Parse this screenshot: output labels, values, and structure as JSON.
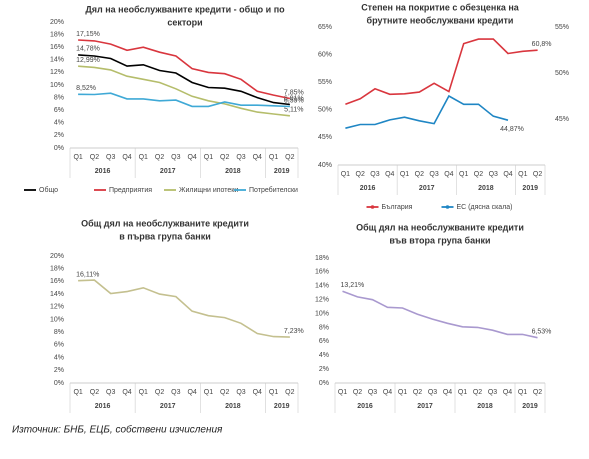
{
  "source": "Източник: БНБ, ЕЦБ, собствени изчисления",
  "chart_data": [
    {
      "type": "line",
      "title": [
        "Дял на необслужваните кредити - общо и по",
        "сектори"
      ],
      "categories": [
        "Q1",
        "Q2",
        "Q3",
        "Q4",
        "Q1",
        "Q2",
        "Q3",
        "Q4",
        "Q1",
        "Q2",
        "Q3",
        "Q4",
        "Q1",
        "Q2"
      ],
      "years": [
        "2016",
        "2016",
        "2016",
        "2016",
        "2017",
        "2017",
        "2017",
        "2017",
        "2018",
        "2018",
        "2018",
        "2018",
        "2019",
        "2019"
      ],
      "ylim": [
        0,
        20
      ],
      "yticks": [
        {
          "value": 0,
          "label": "0%"
        },
        {
          "value": 2,
          "label": "2%"
        },
        {
          "value": 4,
          "label": "4%"
        },
        {
          "value": 6,
          "label": "6%"
        },
        {
          "value": 8,
          "label": "8%"
        },
        {
          "value": 10,
          "label": "10%"
        },
        {
          "value": 12,
          "label": "12%"
        },
        {
          "value": 14,
          "label": "14%"
        },
        {
          "value": 16,
          "label": "16%"
        },
        {
          "value": 18,
          "label": "18%"
        },
        {
          "value": 20,
          "label": "20%"
        }
      ],
      "legend": "bottom",
      "series": [
        {
          "name": "Общо",
          "color": "#000000",
          "values": [
            14.78,
            14.6,
            14.2,
            13.0,
            13.2,
            12.3,
            11.9,
            10.4,
            9.6,
            9.5,
            9.0,
            8.0,
            7.2,
            6.91
          ],
          "value_labels": [
            "14,78%",
            null,
            null,
            null,
            null,
            null,
            null,
            null,
            null,
            null,
            null,
            null,
            null,
            "6,91%"
          ]
        },
        {
          "name": "Предприятия",
          "color": "#d9363e",
          "values": [
            17.15,
            17.0,
            16.5,
            15.5,
            16.0,
            15.2,
            14.6,
            12.6,
            12.0,
            11.8,
            10.9,
            9.0,
            8.4,
            7.85
          ],
          "value_labels": [
            "17,15%",
            null,
            null,
            null,
            null,
            null,
            null,
            null,
            null,
            null,
            null,
            null,
            null,
            "7,85%"
          ]
        },
        {
          "name": "Жилищни ипотеки",
          "color": "#b5bd6b",
          "values": [
            12.99,
            12.8,
            12.4,
            11.4,
            10.9,
            10.4,
            9.4,
            8.2,
            7.5,
            7.0,
            6.3,
            5.7,
            5.4,
            5.11
          ],
          "value_labels": [
            "12,99%",
            null,
            null,
            null,
            null,
            null,
            null,
            null,
            null,
            null,
            null,
            null,
            null,
            "5,11%"
          ]
        },
        {
          "name": "Потребителски",
          "color": "#3fa9d6",
          "values": [
            8.52,
            8.5,
            8.7,
            7.8,
            7.8,
            7.5,
            7.6,
            6.6,
            6.6,
            7.3,
            6.8,
            6.8,
            6.7,
            6.59
          ],
          "value_labels": [
            "8,52%",
            null,
            null,
            null,
            null,
            null,
            null,
            null,
            null,
            null,
            null,
            null,
            null,
            "6,59%"
          ]
        }
      ]
    },
    {
      "type": "line",
      "title": [
        "Степен на покритие с обезценка на",
        "брутните необслужвани кредити"
      ],
      "categories": [
        "Q1",
        "Q2",
        "Q3",
        "Q4",
        "Q1",
        "Q2",
        "Q3",
        "Q4",
        "Q1",
        "Q2",
        "Q3",
        "Q4",
        "Q1",
        "Q2"
      ],
      "years": [
        "2016",
        "2016",
        "2016",
        "2016",
        "2017",
        "2017",
        "2017",
        "2017",
        "2018",
        "2018",
        "2018",
        "2018",
        "2019",
        "2019"
      ],
      "ylim": [
        40,
        65
      ],
      "yticks": [
        {
          "value": 40,
          "label": "40%"
        },
        {
          "value": 45,
          "label": "45%"
        },
        {
          "value": 50,
          "label": "50%"
        },
        {
          "value": 55,
          "label": "55%"
        },
        {
          "value": 60,
          "label": "60%"
        },
        {
          "value": 65,
          "label": "65%"
        }
      ],
      "y2lim": [
        40,
        55
      ],
      "y2ticks": [
        {
          "value": 45,
          "label": "45%"
        },
        {
          "value": 50,
          "label": "50%"
        },
        {
          "value": 55,
          "label": "55%"
        }
      ],
      "legend": "bottom",
      "series": [
        {
          "name": "България",
          "color": "#d9363e",
          "values": [
            51.0,
            52.0,
            53.8,
            52.8,
            52.9,
            53.2,
            54.8,
            53.3,
            62.0,
            62.8,
            62.8,
            60.2,
            60.6,
            60.8
          ],
          "value_labels": [
            null,
            null,
            null,
            null,
            null,
            null,
            null,
            null,
            null,
            null,
            null,
            null,
            null,
            "60,8%"
          ]
        },
        {
          "name": "ЕС (дясна скала)",
          "color": "#1f86c4",
          "axis": "y2",
          "values": [
            44.0,
            44.4,
            44.4,
            44.9,
            45.2,
            44.8,
            44.5,
            47.5,
            46.6,
            46.6,
            45.3,
            44.87,
            null,
            null
          ],
          "value_labels": [
            null,
            null,
            null,
            null,
            null,
            null,
            null,
            null,
            null,
            null,
            null,
            "44,87%",
            null,
            null
          ]
        }
      ]
    },
    {
      "type": "line",
      "title": [
        "Общ дял на необслужваните кредити",
        "в първа група банки"
      ],
      "categories": [
        "Q1",
        "Q2",
        "Q3",
        "Q4",
        "Q1",
        "Q2",
        "Q3",
        "Q4",
        "Q1",
        "Q2",
        "Q3",
        "Q4",
        "Q1",
        "Q2"
      ],
      "years": [
        "2016",
        "2016",
        "2016",
        "2016",
        "2017",
        "2017",
        "2017",
        "2017",
        "2018",
        "2018",
        "2018",
        "2018",
        "2019",
        "2019"
      ],
      "ylim": [
        0,
        20
      ],
      "yticks": [
        {
          "value": 0,
          "label": "0%"
        },
        {
          "value": 2,
          "label": "2%"
        },
        {
          "value": 4,
          "label": "4%"
        },
        {
          "value": 6,
          "label": "6%"
        },
        {
          "value": 8,
          "label": "8%"
        },
        {
          "value": 10,
          "label": "10%"
        },
        {
          "value": 12,
          "label": "12%"
        },
        {
          "value": 14,
          "label": "14%"
        },
        {
          "value": 16,
          "label": "16%"
        },
        {
          "value": 18,
          "label": "18%"
        },
        {
          "value": 20,
          "label": "20%"
        }
      ],
      "series": [
        {
          "color": "#c4c08f",
          "values": [
            16.11,
            16.2,
            14.1,
            14.4,
            15.0,
            14.0,
            13.6,
            11.3,
            10.6,
            10.3,
            9.4,
            7.8,
            7.3,
            7.23
          ],
          "value_labels": [
            "16,11%",
            null,
            null,
            null,
            null,
            null,
            null,
            null,
            null,
            null,
            null,
            null,
            null,
            "7,23%"
          ]
        }
      ]
    },
    {
      "type": "line",
      "title": [
        "Общ дял на необслужваните кредити",
        "във втора група банки"
      ],
      "categories": [
        "Q1",
        "Q2",
        "Q3",
        "Q4",
        "Q1",
        "Q2",
        "Q3",
        "Q4",
        "Q1",
        "Q2",
        "Q3",
        "Q4",
        "Q1",
        "Q2"
      ],
      "years": [
        "2016",
        "2016",
        "2016",
        "2016",
        "2017",
        "2017",
        "2017",
        "2017",
        "2018",
        "2018",
        "2018",
        "2018",
        "2019",
        "2019"
      ],
      "ylim": [
        0,
        18
      ],
      "yticks": [
        {
          "value": 0,
          "label": "0%"
        },
        {
          "value": 2,
          "label": "2%"
        },
        {
          "value": 4,
          "label": "4%"
        },
        {
          "value": 6,
          "label": "6%"
        },
        {
          "value": 8,
          "label": "8%"
        },
        {
          "value": 10,
          "label": "10%"
        },
        {
          "value": 12,
          "label": "12%"
        },
        {
          "value": 14,
          "label": "14%"
        },
        {
          "value": 16,
          "label": "16%"
        },
        {
          "value": 18,
          "label": "18%"
        }
      ],
      "series": [
        {
          "color": "#a999cf",
          "values": [
            13.21,
            12.4,
            12.0,
            10.9,
            10.8,
            9.9,
            9.2,
            8.6,
            8.1,
            8.0,
            7.6,
            7.0,
            7.0,
            6.53
          ],
          "value_labels": [
            "13,21%",
            null,
            null,
            null,
            null,
            null,
            null,
            null,
            null,
            null,
            null,
            null,
            null,
            "6,53%"
          ]
        }
      ]
    }
  ]
}
